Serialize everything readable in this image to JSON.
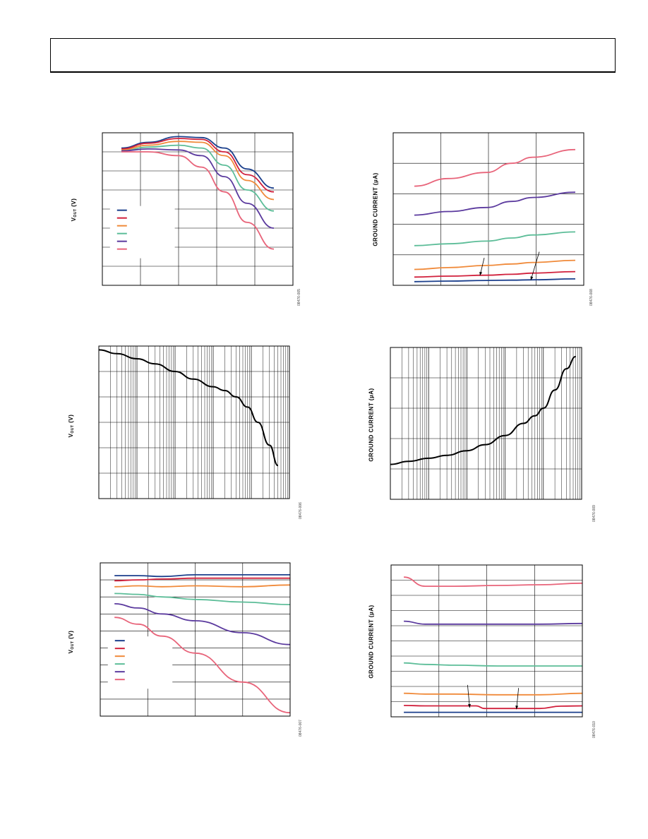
{
  "page": {
    "header": ""
  },
  "colors": {
    "navy": "#1b3f8c",
    "red": "#d1203c",
    "orange": "#f08a3a",
    "teal": "#5cbd98",
    "purple": "#5b3a9e",
    "pink": "#e8647a",
    "black": "#000000",
    "grid": "#000000"
  },
  "figures": [
    {
      "id": "fig-tl",
      "ylabel_html": "V<sub>OUT</sub> (V)",
      "ylabel_text": "VOUT (V)",
      "fig_id": "08476-005",
      "chart_data": {
        "type": "line",
        "x_scale": "linear",
        "xlim": [
          0,
          5
        ],
        "ylim": [
          0,
          8
        ],
        "legend_position": "left",
        "grid": true,
        "series": [
          {
            "color": "navy",
            "x": [
              0.5,
              1.2,
              2,
              2.6,
              3.2,
              3.8,
              4.5
            ],
            "y": [
              7.2,
              7.5,
              7.8,
              7.75,
              7.2,
              6.1,
              5.1
            ]
          },
          {
            "color": "red",
            "x": [
              0.5,
              1.2,
              2,
              2.6,
              3.2,
              3.8,
              4.5
            ],
            "y": [
              7.15,
              7.45,
              7.7,
              7.65,
              7.0,
              5.8,
              4.9
            ]
          },
          {
            "color": "orange",
            "x": [
              0.5,
              1.2,
              2,
              2.6,
              3.2,
              3.8,
              4.5
            ],
            "y": [
              7.1,
              7.35,
              7.55,
              7.5,
              6.8,
              5.5,
              4.5
            ]
          },
          {
            "color": "teal",
            "x": [
              0.5,
              1.2,
              2,
              2.6,
              3.2,
              3.8,
              4.5
            ],
            "y": [
              7.05,
              7.25,
              7.35,
              7.2,
              6.3,
              5.0,
              3.9
            ]
          },
          {
            "color": "purple",
            "x": [
              0.5,
              1.2,
              2,
              2.6,
              3.2,
              3.8,
              4.5
            ],
            "y": [
              7.05,
              7.15,
              7.1,
              6.8,
              5.7,
              4.3,
              3.0
            ]
          },
          {
            "color": "pink",
            "x": [
              0.5,
              1.2,
              2,
              2.6,
              3.2,
              3.8,
              4.5
            ],
            "y": [
              7.0,
              7.0,
              6.8,
              6.2,
              4.9,
              3.3,
              1.9
            ]
          }
        ]
      }
    },
    {
      "id": "fig-tr",
      "ylabel_html": "GROUND CURRENT (µA)",
      "ylabel_text": "GROUND CURRENT (µA)",
      "fig_id": "08476-008",
      "chart_data": {
        "type": "line",
        "x_scale": "linear",
        "xlim": [
          0,
          4.5
        ],
        "ylim": [
          0,
          5
        ],
        "grid": true,
        "series": [
          {
            "color": "pink",
            "x": [
              0.5,
              1.3,
              2.2,
              2.8,
              3.3,
              4.3
            ],
            "y": [
              3.25,
              3.5,
              3.7,
              4.0,
              4.2,
              4.45
            ]
          },
          {
            "color": "purple",
            "x": [
              0.5,
              1.3,
              2.2,
              2.8,
              3.3,
              4.3
            ],
            "y": [
              2.3,
              2.42,
              2.55,
              2.75,
              2.88,
              3.05
            ]
          },
          {
            "color": "teal",
            "x": [
              0.5,
              1.3,
              2.2,
              2.8,
              3.3,
              4.3
            ],
            "y": [
              1.3,
              1.36,
              1.45,
              1.55,
              1.65,
              1.75
            ]
          },
          {
            "color": "orange",
            "x": [
              0.5,
              1.3,
              2.2,
              2.8,
              3.3,
              4.3
            ],
            "y": [
              0.52,
              0.58,
              0.65,
              0.7,
              0.75,
              0.82
            ]
          },
          {
            "color": "red",
            "x": [
              0.5,
              1.3,
              2.2,
              2.8,
              3.3,
              4.3
            ],
            "y": [
              0.27,
              0.3,
              0.33,
              0.36,
              0.4,
              0.45
            ]
          },
          {
            "color": "navy",
            "x": [
              0.5,
              1.3,
              2.2,
              2.8,
              3.3,
              4.3
            ],
            "y": [
              0.12,
              0.14,
              0.16,
              0.17,
              0.18,
              0.21
            ]
          }
        ],
        "arrows": [
          {
            "from": [
              2.15,
              0.9
            ],
            "to": [
              2.05,
              0.32
            ]
          },
          {
            "from": [
              3.45,
              1.1
            ],
            "to": [
              3.25,
              0.17
            ]
          }
        ]
      }
    },
    {
      "id": "fig-ml",
      "ylabel_html": "V<sub>OUT</sub> (V)",
      "ylabel_text": "VOUT (V)",
      "fig_id": "08476-006",
      "chart_data": {
        "type": "line",
        "x_scale": "log",
        "xlim": [
          0.01,
          1000
        ],
        "ylim": [
          0,
          6
        ],
        "grid": true,
        "series": [
          {
            "color": "black",
            "x": [
              0.01,
              0.03,
              0.1,
              0.3,
              1,
              3,
              10,
              20,
              40,
              80,
              150,
              300,
              500
            ],
            "y": [
              5.85,
              5.7,
              5.5,
              5.3,
              5.0,
              4.7,
              4.4,
              4.25,
              4.0,
              3.6,
              3.0,
              2.1,
              1.3
            ]
          }
        ]
      }
    },
    {
      "id": "fig-mr",
      "ylabel_html": "GROUND CURRENT (µA)",
      "ylabel_text": "GROUND CURRENT (µA)",
      "fig_id": "08476-009",
      "chart_data": {
        "type": "line",
        "x_scale": "log",
        "xlim": [
          0.01,
          1000
        ],
        "ylim": [
          0,
          5
        ],
        "grid": true,
        "series": [
          {
            "color": "black",
            "x": [
              0.01,
              0.03,
              0.1,
              0.3,
              1,
              3,
              10,
              30,
              60,
              100,
              200,
              400,
              700
            ],
            "y": [
              1.15,
              1.25,
              1.35,
              1.45,
              1.6,
              1.8,
              2.1,
              2.5,
              2.75,
              3.0,
              3.6,
              4.3,
              4.7
            ]
          }
        ]
      }
    },
    {
      "id": "fig-bl",
      "ylabel_html": "V<sub>OUT</sub> (V)",
      "ylabel_text": "VOUT (V)",
      "fig_id": "08476-007",
      "chart_data": {
        "type": "line",
        "x_scale": "linear",
        "xlim": [
          0,
          4
        ],
        "ylim": [
          0,
          9
        ],
        "grid": true,
        "legend_position": "left",
        "series": [
          {
            "color": "navy",
            "x": [
              0.3,
              0.8,
              1.3,
              2,
              3,
              4
            ],
            "y": [
              8.25,
              8.25,
              8.2,
              8.3,
              8.3,
              8.3
            ]
          },
          {
            "color": "red",
            "x": [
              0.3,
              0.8,
              1.3,
              2,
              3,
              4
            ],
            "y": [
              7.95,
              8.0,
              8.05,
              8.1,
              8.1,
              8.1
            ]
          },
          {
            "color": "orange",
            "x": [
              0.3,
              0.8,
              1.3,
              2,
              3,
              4
            ],
            "y": [
              7.6,
              7.65,
              7.6,
              7.65,
              7.6,
              7.7
            ]
          },
          {
            "color": "teal",
            "x": [
              0.3,
              0.8,
              1.3,
              2,
              3,
              4
            ],
            "y": [
              7.2,
              7.15,
              7.0,
              6.85,
              6.7,
              6.55
            ]
          },
          {
            "color": "purple",
            "x": [
              0.3,
              0.8,
              1.3,
              2,
              3,
              4
            ],
            "y": [
              6.6,
              6.35,
              6.0,
              5.6,
              4.9,
              4.2
            ]
          },
          {
            "color": "pink",
            "x": [
              0.3,
              0.8,
              1.3,
              2,
              3,
              4
            ],
            "y": [
              5.8,
              5.4,
              4.7,
              3.7,
              2.0,
              0.2
            ]
          }
        ]
      }
    },
    {
      "id": "fig-br",
      "ylabel_html": "GROUND CURRENT (µA)",
      "ylabel_text": "GROUND CURRENT (µA)",
      "fig_id": "08476-010",
      "chart_data": {
        "type": "line",
        "x_scale": "linear",
        "xlim": [
          0,
          4.5
        ],
        "ylim": [
          0,
          10
        ],
        "grid": true,
        "series": [
          {
            "color": "pink",
            "x": [
              0.3,
              0.8,
              1.5,
              2.5,
              3.5,
              4.5
            ],
            "y": [
              9.2,
              8.6,
              8.6,
              8.65,
              8.7,
              8.8
            ]
          },
          {
            "color": "purple",
            "x": [
              0.3,
              0.8,
              1.5,
              2.5,
              3.5,
              4.5
            ],
            "y": [
              6.3,
              6.1,
              6.1,
              6.1,
              6.1,
              6.15
            ]
          },
          {
            "color": "teal",
            "x": [
              0.3,
              0.8,
              1.5,
              2.5,
              3.5,
              4.5
            ],
            "y": [
              3.55,
              3.45,
              3.4,
              3.35,
              3.35,
              3.35
            ]
          },
          {
            "color": "orange",
            "x": [
              0.3,
              0.8,
              1.5,
              2.5,
              3.5,
              4.5
            ],
            "y": [
              1.55,
              1.5,
              1.5,
              1.45,
              1.45,
              1.55
            ]
          },
          {
            "color": "red",
            "x": [
              0.3,
              0.8,
              1.5,
              2.0,
              2.2,
              3.5,
              4.0,
              4.5
            ],
            "y": [
              0.75,
              0.72,
              0.72,
              0.72,
              0.55,
              0.55,
              0.7,
              0.72
            ]
          },
          {
            "color": "navy",
            "x": [
              0.3,
              1.5,
              3,
              4.5
            ],
            "y": [
              0.3,
              0.3,
              0.3,
              0.3
            ]
          }
        ],
        "arrows": [
          {
            "from": [
              1.8,
              2.1
            ],
            "to": [
              1.85,
              0.6
            ]
          },
          {
            "from": [
              3.0,
              1.9
            ],
            "to": [
              2.95,
              0.5
            ]
          }
        ]
      }
    }
  ]
}
